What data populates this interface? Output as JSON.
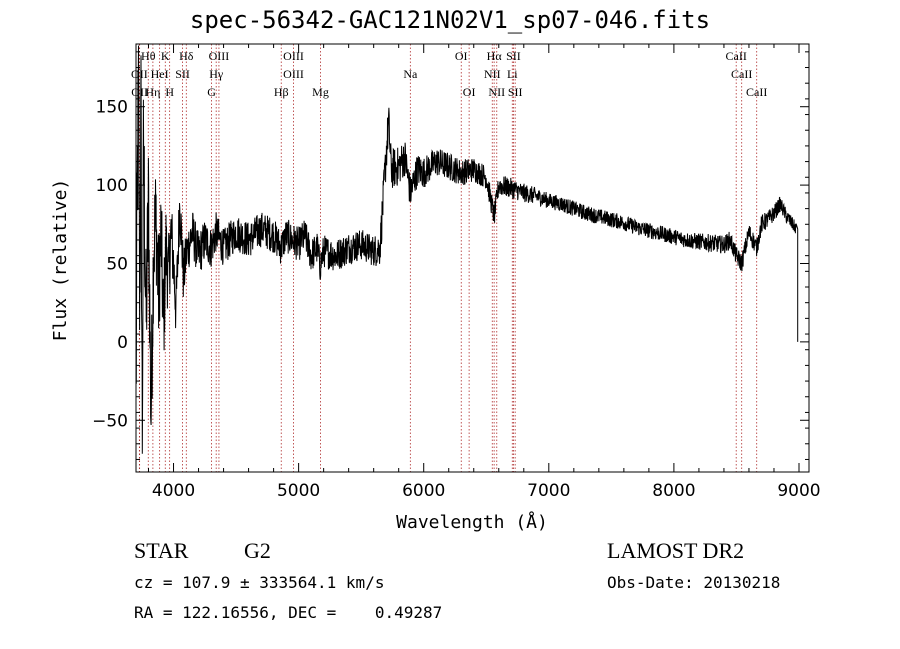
{
  "chart_data": {
    "type": "line",
    "title": "spec-56342-GAC121N02V1_sp07-046.fits",
    "xlabel": "Wavelength (Å)",
    "ylabel": "Flux (relative)",
    "xlim": [
      3700,
      9080
    ],
    "ylim": [
      -83,
      190
    ],
    "xticks": [
      4000,
      5000,
      6000,
      7000,
      8000,
      9000
    ],
    "yticks": [
      -50,
      0,
      50,
      100,
      150
    ],
    "grid": false,
    "series": [
      {
        "anchors": [
          [
            3700,
            -35
          ],
          [
            3710,
            100
          ],
          [
            3720,
            160
          ],
          [
            3730,
            20
          ],
          [
            3740,
            150
          ],
          [
            3750,
            -70
          ],
          [
            3760,
            130
          ],
          [
            3780,
            10
          ],
          [
            3800,
            90
          ],
          [
            3820,
            -50
          ],
          [
            3840,
            60
          ],
          [
            3860,
            80
          ],
          [
            3880,
            30
          ],
          [
            3900,
            70
          ],
          [
            3920,
            10
          ],
          [
            3940,
            60
          ],
          [
            3960,
            40
          ],
          [
            3980,
            70
          ],
          [
            4000,
            50
          ],
          [
            4020,
            20
          ],
          [
            4050,
            90
          ],
          [
            4080,
            40
          ],
          [
            4100,
            55
          ],
          [
            4150,
            70
          ],
          [
            4200,
            55
          ],
          [
            4250,
            65
          ],
          [
            4300,
            60
          ],
          [
            4340,
            70
          ],
          [
            4400,
            60
          ],
          [
            4500,
            70
          ],
          [
            4600,
            65
          ],
          [
            4700,
            72
          ],
          [
            4800,
            68
          ],
          [
            4860,
            60
          ],
          [
            4900,
            68
          ],
          [
            4950,
            65
          ],
          [
            5000,
            62
          ],
          [
            5050,
            68
          ],
          [
            5100,
            55
          ],
          [
            5150,
            60
          ],
          [
            5170,
            48
          ],
          [
            5200,
            58
          ],
          [
            5300,
            55
          ],
          [
            5400,
            60
          ],
          [
            5500,
            62
          ],
          [
            5600,
            58
          ],
          [
            5650,
            60
          ],
          [
            5680,
            95
          ],
          [
            5700,
            120
          ],
          [
            5720,
            140
          ],
          [
            5740,
            110
          ],
          [
            5800,
            112
          ],
          [
            5850,
            118
          ],
          [
            5893,
            95
          ],
          [
            5950,
            110
          ],
          [
            6000,
            108
          ],
          [
            6100,
            115
          ],
          [
            6200,
            112
          ],
          [
            6300,
            108
          ],
          [
            6400,
            110
          ],
          [
            6500,
            105
          ],
          [
            6563,
            80
          ],
          [
            6600,
            100
          ],
          [
            6700,
            98
          ],
          [
            6800,
            95
          ],
          [
            6900,
            93
          ],
          [
            7000,
            90
          ],
          [
            7100,
            88
          ],
          [
            7200,
            85
          ],
          [
            7300,
            82
          ],
          [
            7400,
            80
          ],
          [
            7500,
            78
          ],
          [
            7600,
            76
          ],
          [
            7700,
            73
          ],
          [
            7800,
            71
          ],
          [
            7900,
            69
          ],
          [
            8000,
            67
          ],
          [
            8100,
            65
          ],
          [
            8200,
            64
          ],
          [
            8300,
            63
          ],
          [
            8400,
            62
          ],
          [
            8450,
            65
          ],
          [
            8498,
            55
          ],
          [
            8542,
            50
          ],
          [
            8600,
            70
          ],
          [
            8662,
            60
          ],
          [
            8700,
            75
          ],
          [
            8750,
            78
          ],
          [
            8800,
            82
          ],
          [
            8850,
            88
          ],
          [
            8900,
            80
          ],
          [
            8950,
            75
          ],
          [
            8980,
            72
          ],
          [
            8990,
            0
          ]
        ],
        "noise": [
          [
            3700,
            55
          ],
          [
            3800,
            45
          ],
          [
            3900,
            35
          ],
          [
            4000,
            22
          ],
          [
            4100,
            16
          ],
          [
            4400,
            12
          ],
          [
            5000,
            11
          ],
          [
            5600,
            10
          ],
          [
            5700,
            14
          ],
          [
            6000,
            10
          ],
          [
            6600,
            7
          ],
          [
            7000,
            5
          ],
          [
            8000,
            5
          ],
          [
            8500,
            6
          ],
          [
            8700,
            6
          ],
          [
            8990,
            4
          ]
        ]
      }
    ],
    "line_markers": {
      "row1": [
        {
          "label": "Hθ",
          "x": 3798
        },
        {
          "label": "K",
          "x": 3934
        },
        {
          "label": "Hδ",
          "x": 4102
        },
        {
          "label": "OIII",
          "x": 4363
        },
        {
          "label": "OIII",
          "x": 4959
        },
        {
          "label": "OI",
          "x": 6300
        },
        {
          "label": "Hα",
          "x": 6563
        },
        {
          "label": "SII",
          "x": 6717
        },
        {
          "label": "CaII",
          "x": 8498
        }
      ],
      "row2": [
        {
          "label": "OII",
          "x": 3727
        },
        {
          "label": "HeI",
          "x": 3889
        },
        {
          "label": "SII",
          "x": 4072
        },
        {
          "label": "Hγ",
          "x": 4341
        },
        {
          "label": "OIII",
          "x": 4959
        },
        {
          "label": "Na",
          "x": 5893
        },
        {
          "label": "NII",
          "x": 6548
        },
        {
          "label": "Li",
          "x": 6708
        },
        {
          "label": "CaII",
          "x": 8542
        }
      ],
      "row3": [
        {
          "label": "OII",
          "x": 3729
        },
        {
          "label": "Hη",
          "x": 3835
        },
        {
          "label": "H",
          "x": 3969
        },
        {
          "label": "G",
          "x": 4304
        },
        {
          "label": "Hβ",
          "x": 4861
        },
        {
          "label": "Mg",
          "x": 5175
        },
        {
          "label": "OI",
          "x": 6363
        },
        {
          "label": "NII",
          "x": 6584
        },
        {
          "label": "SII",
          "x": 6731
        },
        {
          "label": "CaII",
          "x": 8662
        }
      ]
    }
  },
  "info": {
    "object_class": "STAR",
    "subclass": "G2",
    "survey": "LAMOST DR2",
    "redshift_line": "cz = 107.9 ± 333564.1 km/s",
    "obs_date": "Obs-Date: 20130218",
    "coords": "RA = 122.16556, DEC =    0.49287"
  },
  "colors": {
    "line": "#000000",
    "marker": "#b03030",
    "background": "#ffffff"
  }
}
